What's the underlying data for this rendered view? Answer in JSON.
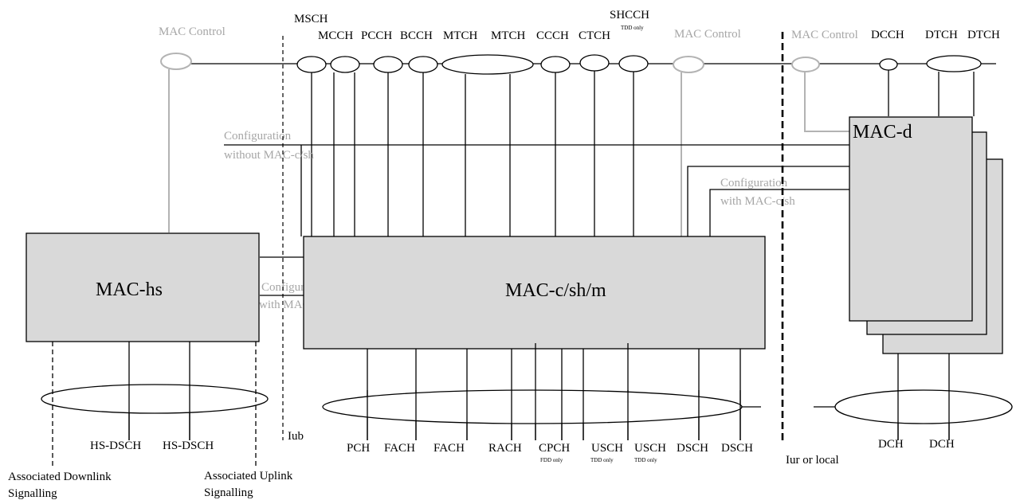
{
  "boxes": {
    "mac_hs": "MAC-hs",
    "mac_csh": "MAC-c/sh/m",
    "mac_d": "MAC-d"
  },
  "mac_control": {
    "left": "MAC Control",
    "mid": "MAC Control",
    "right": "MAC Control"
  },
  "logical_channels": {
    "msch": "MSCH",
    "mcch": "MCCH",
    "pcch": "PCCH",
    "bcch": "BCCH",
    "mtch1": "MTCH",
    "mtch2": "MTCH",
    "ccch": "CCCH",
    "ctch": "CTCH",
    "shcch": "SHCCH",
    "shcch_note": "TDD only",
    "dcch": "DCCH",
    "dtch1": "DTCH",
    "dtch2": "DTCH"
  },
  "configs": {
    "without_1": "Configuration",
    "without_2": "without MAC-c/sh",
    "with_right_1": "Configuration",
    "with_right_2": "with MAC-c/sh",
    "with_hs_1": "Configuration",
    "with_hs_2": "with MAC-c/sh"
  },
  "transport_channels": {
    "hs1": "HS-DSCH",
    "hs2": "HS-DSCH",
    "pch": "PCH",
    "fach1": "FACH",
    "fach2": "FACH",
    "rach": "RACH",
    "cpch": "CPCH",
    "cpch_note": "FDD only",
    "usch1": "USCH",
    "usch1_note": "TDD only",
    "usch2": "USCH",
    "usch2_note": "TDD only",
    "dsch1": "DSCH",
    "dsch2": "DSCH",
    "dch1": "DCH",
    "dch2": "DCH"
  },
  "interfaces": {
    "iub": "Iub",
    "iur": "Iur or local"
  },
  "signalling": {
    "downlink_1": "Associated Downlink",
    "downlink_2": "Signalling",
    "uplink_1": "Associated Uplink",
    "uplink_2": "Signalling"
  }
}
